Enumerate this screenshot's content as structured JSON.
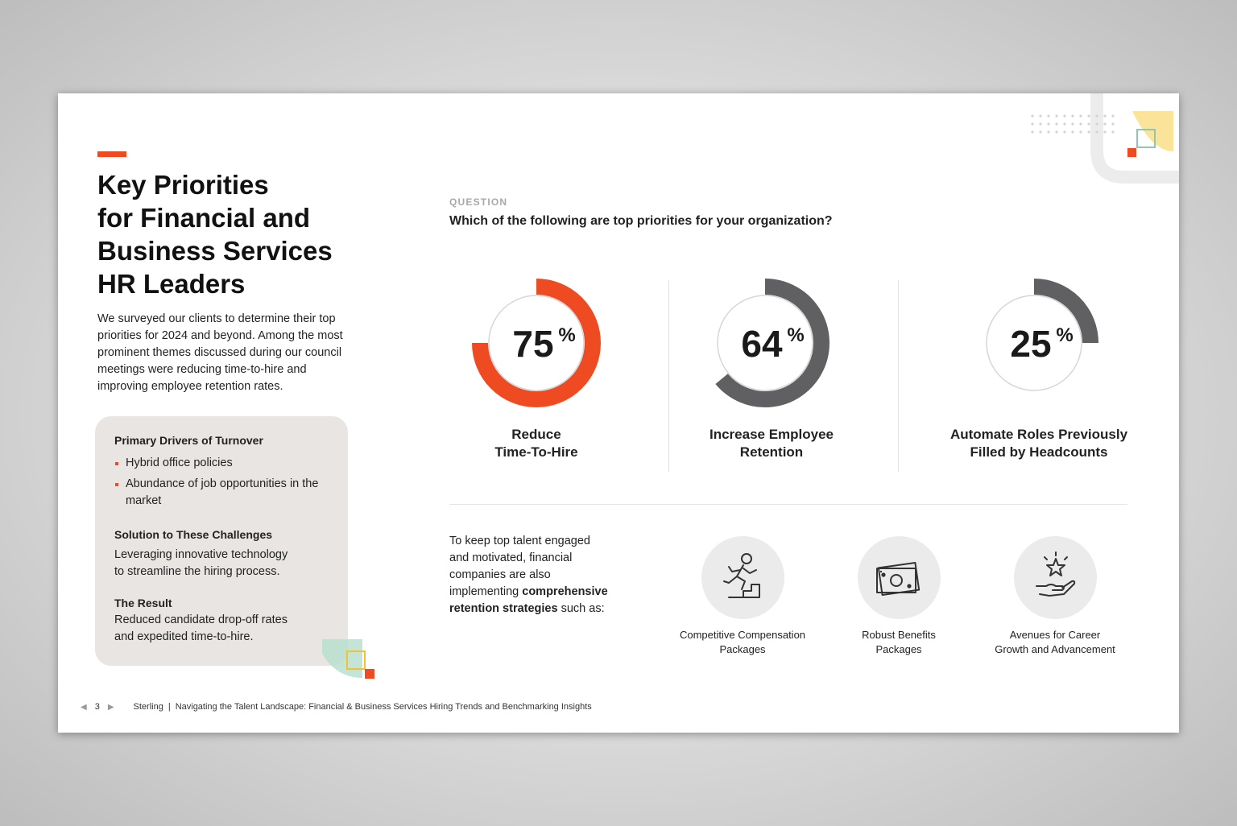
{
  "heading": {
    "title_lines": [
      "Key Priorities",
      "for Financial and",
      "Business Services",
      "HR Leaders"
    ],
    "intro": "We surveyed our clients to determine their top priorities for 2024 and beyond. Among the most prominent themes discussed during our council meetings were reducing time-to-hire and improving employee retention rates."
  },
  "sidebox": {
    "drivers_heading": "Primary Drivers of Turnover",
    "drivers": [
      "Hybrid office policies",
      "Abundance of job opportunities in the market"
    ],
    "solution_heading": "Solution to These Challenges",
    "solution_text": "Leveraging innovative technology to streamline the hiring process.",
    "result_heading": "The Result",
    "result_text": "Reduced candidate drop-off rates and expedited time-to-hire."
  },
  "question": {
    "label": "QUESTION",
    "text": "Which of the following are top priorities for your organization?"
  },
  "metrics": [
    {
      "value": "75",
      "unit": "%",
      "percent": 75,
      "color": "#ee4b22",
      "label_line1": "Reduce",
      "label_line2": "Time-To-Hire"
    },
    {
      "value": "64",
      "unit": "%",
      "percent": 64,
      "color": "#606063",
      "label_line1": "Increase Employee",
      "label_line2": "Retention"
    },
    {
      "value": "25",
      "unit": "%",
      "percent": 25,
      "color": "#606063",
      "label_line1": "Automate Roles Previously",
      "label_line2": "Filled by Headcounts"
    }
  ],
  "retention": {
    "text_before": "To keep top talent engaged and motivated, financial companies are also implementing ",
    "text_bold": "comprehensive retention strategies",
    "text_after": " such as:"
  },
  "strategies": [
    {
      "icon": "runner-stairs-icon",
      "line1": "Competitive Compensation",
      "line2": "Packages"
    },
    {
      "icon": "money-bill-icon",
      "line1": "Robust Benefits",
      "line2": "Packages"
    },
    {
      "icon": "hand-star-icon",
      "line1": "Avenues for Career",
      "line2": "Growth and Advancement"
    }
  ],
  "footer": {
    "page_number": "3",
    "brand": "Sterling",
    "separator": "|",
    "doc_title": "Navigating the Talent Landscape: Financial & Business Services Hiring Trends and Benchmarking Insights"
  },
  "colors": {
    "accent": "#ee4b22",
    "gray_arc": "#606063",
    "sidebox_bg": "#e9e5e2"
  }
}
